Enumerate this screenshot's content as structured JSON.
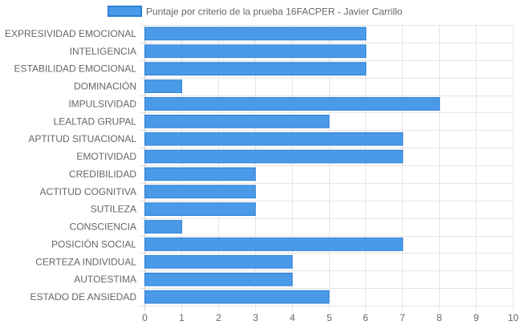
{
  "chart_data": {
    "type": "bar",
    "orientation": "horizontal",
    "title": "",
    "legend": {
      "position": "top",
      "label": "Puntaje por criterio de la prueba 16FACPER - Javier Carrillo"
    },
    "categories": [
      "EXPRESIVIDAD EMOCIONAL",
      "INTELIGENCIA",
      "ESTABILIDAD EMOCIONAL",
      "DOMINACIÓN",
      "IMPULSIVIDAD",
      "LEALTAD GRUPAL",
      "APTITUD SITUACIONAL",
      "EMOTIVIDAD",
      "CREDIBILIDAD",
      "ACTITUD COGNITIVA",
      "SUTILEZA",
      "CONSCIENCIA",
      "POSICIÓN SOCIAL",
      "CERTEZA INDIVIDUAL",
      "AUTOESTIMA",
      "ESTADO DE ANSIEDAD"
    ],
    "series": [
      {
        "name": "Puntaje por criterio de la prueba 16FACPER - Javier Carrillo",
        "values": [
          6,
          6,
          6,
          1,
          8,
          5,
          7,
          7,
          3,
          3,
          3,
          1,
          7,
          4,
          4,
          5
        ],
        "color": "#4a9ae8",
        "border_color": "#2b7fd6"
      }
    ],
    "xlim": [
      0,
      10
    ],
    "xticks": [
      "0",
      "1",
      "2",
      "3",
      "4",
      "5",
      "6",
      "7",
      "8",
      "9",
      "10"
    ],
    "xlabel": "",
    "ylabel": "",
    "grid": true,
    "grid_color": "#e5e5e5"
  }
}
